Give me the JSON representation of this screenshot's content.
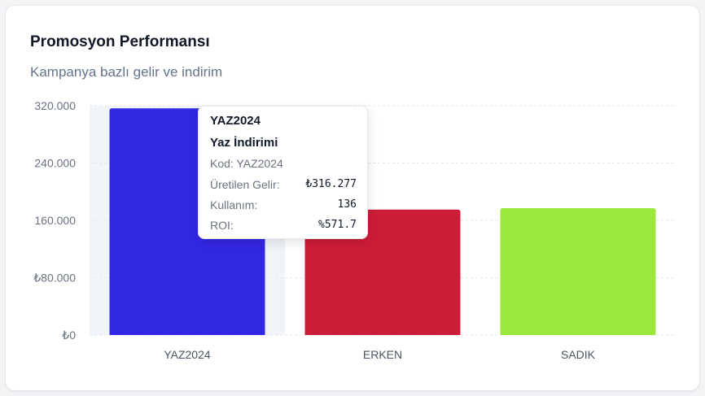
{
  "card": {
    "title": "Promosyon Performansı",
    "subtitle": "Kampanya bazlı gelir ve indirim"
  },
  "tooltip": {
    "code": "YAZ2024",
    "name": "Yaz İndirimi",
    "code_line": "Kod: YAZ2024",
    "revenue_label": "Üretilen Gelir:",
    "revenue_value": "₺316.277",
    "usage_label": "Kullanım:",
    "usage_value": "136",
    "roi_label": "ROI:",
    "roi_value": "%571.7"
  },
  "chart_data": {
    "type": "bar",
    "categories": [
      "YAZ2024",
      "ERKEN",
      "SADIK"
    ],
    "values": [
      316277,
      175000,
      177000
    ],
    "colors": [
      "#3227e3",
      "#cd1c38",
      "#9be83d"
    ],
    "ylim": [
      0,
      320000
    ],
    "yticks": [
      0,
      80000,
      160000,
      240000,
      320000
    ],
    "ytick_labels": [
      "₺0",
      "₺80.000",
      "160.000",
      "240.000",
      "320.000"
    ],
    "grid": true,
    "highlighted": "YAZ2024"
  }
}
